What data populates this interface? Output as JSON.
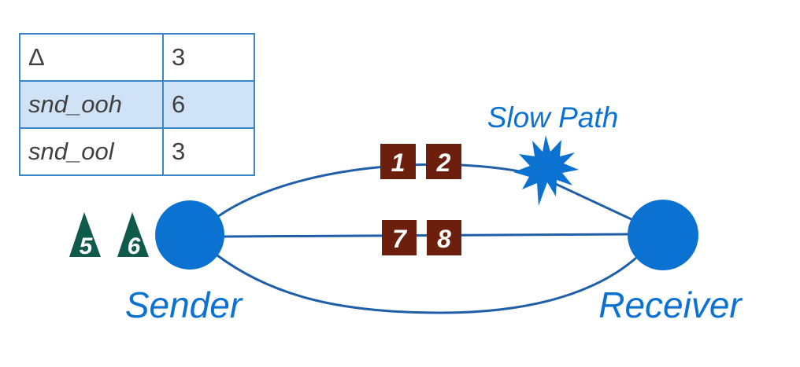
{
  "table": {
    "rows": [
      {
        "key": "Δ",
        "value": "3",
        "highlighted": false
      },
      {
        "key": "snd_ooh",
        "value": "6",
        "highlighted": true
      },
      {
        "key": "snd_ool",
        "value": "3",
        "highlighted": false
      }
    ]
  },
  "nodes": {
    "sender": "Sender",
    "receiver": "Receiver"
  },
  "slow_path_label": "Slow Path",
  "packets_in_flight": {
    "upper_path": [
      "1",
      "2"
    ],
    "middle_path": [
      "7",
      "8"
    ]
  },
  "pending_at_sender": [
    "5",
    "6"
  ],
  "colors": {
    "path_line": "#1f5fa8",
    "node_fill": "#0b72d2",
    "label_blue": "#0b72d2",
    "packet_fill": "#6b1f0c",
    "pending_fill": "#0f5a4a",
    "table_border": "#3a86c8",
    "table_highlight": "#cfe2f6"
  },
  "icons": {
    "slow_path_marker": "starburst-icon",
    "pending_marker": "triangle-icon"
  }
}
